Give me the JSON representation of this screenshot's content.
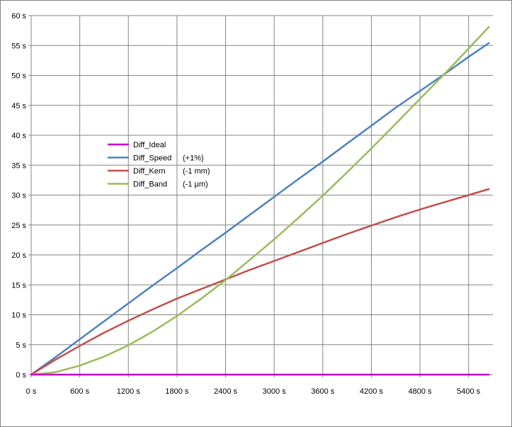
{
  "chart_data": {
    "type": "line",
    "title": "",
    "xlabel": "",
    "ylabel": "",
    "xlim": [
      0,
      5700
    ],
    "ylim": [
      0,
      60
    ],
    "grid": true,
    "legend_position": "center-left",
    "x_ticks": [
      "0 s",
      "600 s",
      "1200 s",
      "1800 s",
      "2400 s",
      "3000 s",
      "3600 s",
      "4200 s",
      "4800 s",
      "5400 s"
    ],
    "y_ticks": [
      "0 s",
      "5 s",
      "10 s",
      "15 s",
      "20 s",
      "25 s",
      "30 s",
      "35 s",
      "40 s",
      "45 s",
      "50 s",
      "55 s",
      "60 s"
    ],
    "x": [
      0,
      300,
      600,
      900,
      1200,
      1500,
      1800,
      2100,
      2400,
      2700,
      3000,
      3300,
      3600,
      3900,
      4200,
      4500,
      4800,
      5100,
      5400,
      5650
    ],
    "series": [
      {
        "name": "Diff_Ideal",
        "note": "",
        "color": "#cc00cc",
        "values": [
          0,
          0,
          0,
          0,
          0,
          0,
          0,
          0,
          0,
          0,
          0,
          0,
          0,
          0,
          0,
          0,
          0,
          0,
          0,
          0
        ]
      },
      {
        "name": "Diff_Speed",
        "note": "(+1%)",
        "color": "#4f81bd",
        "values": [
          0,
          2.9,
          5.9,
          8.9,
          11.9,
          14.9,
          17.8,
          20.8,
          23.7,
          26.7,
          29.7,
          32.7,
          35.6,
          38.6,
          41.6,
          44.6,
          47.4,
          50.2,
          53.1,
          55.4
        ]
      },
      {
        "name": "Diff_Kern",
        "note": "(-1 mm)",
        "color": "#c0504d",
        "values": [
          0,
          2.5,
          4.8,
          7.0,
          9.0,
          10.9,
          12.7,
          14.3,
          15.9,
          17.5,
          19.0,
          20.5,
          22.0,
          23.5,
          24.9,
          26.3,
          27.6,
          28.8,
          30.0,
          31.0
        ]
      },
      {
        "name": "Diff_Band",
        "note": "(-1 µm)",
        "color": "#9bbb59",
        "values": [
          0,
          0.4,
          1.5,
          3.0,
          4.9,
          7.2,
          9.8,
          12.7,
          15.8,
          19.2,
          22.6,
          26.2,
          29.9,
          33.8,
          37.8,
          41.9,
          46.1,
          50.2,
          54.5,
          58.1
        ]
      }
    ]
  }
}
